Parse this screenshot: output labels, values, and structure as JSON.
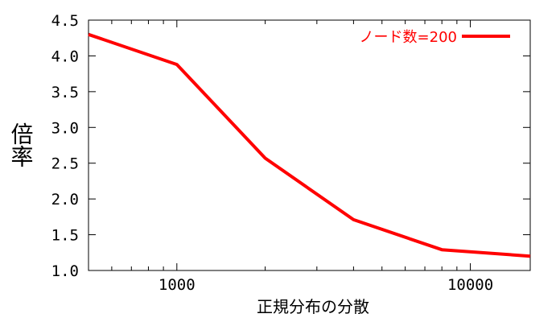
{
  "chart_data": {
    "type": "line",
    "xscale": "log",
    "xlim": [
      500,
      16000
    ],
    "ylim": [
      1.0,
      4.5
    ],
    "xticks": [
      1000,
      10000
    ],
    "xtick_labels": [
      "1000",
      "10000"
    ],
    "xminor_ticks": [
      600,
      700,
      800,
      900,
      2000,
      3000,
      4000,
      5000,
      6000,
      7000,
      8000,
      9000
    ],
    "yticks": [
      1.0,
      1.5,
      2.0,
      2.5,
      3.0,
      3.5,
      4.0,
      4.5
    ],
    "ytick_labels": [
      "1.0",
      "1.5",
      "2.0",
      "2.5",
      "3.0",
      "3.5",
      "4.0",
      "4.5"
    ],
    "xlabel": "正規分布の分散",
    "ylabel": "倍率",
    "title": "",
    "grid": false,
    "legend_position": "top-right",
    "series": [
      {
        "name": "ノード数=200",
        "color": "#ff0000",
        "x": [
          500,
          1000,
          2000,
          4000,
          8000,
          16000
        ],
        "y": [
          4.3,
          3.88,
          2.57,
          1.71,
          1.29,
          1.2
        ]
      }
    ]
  }
}
